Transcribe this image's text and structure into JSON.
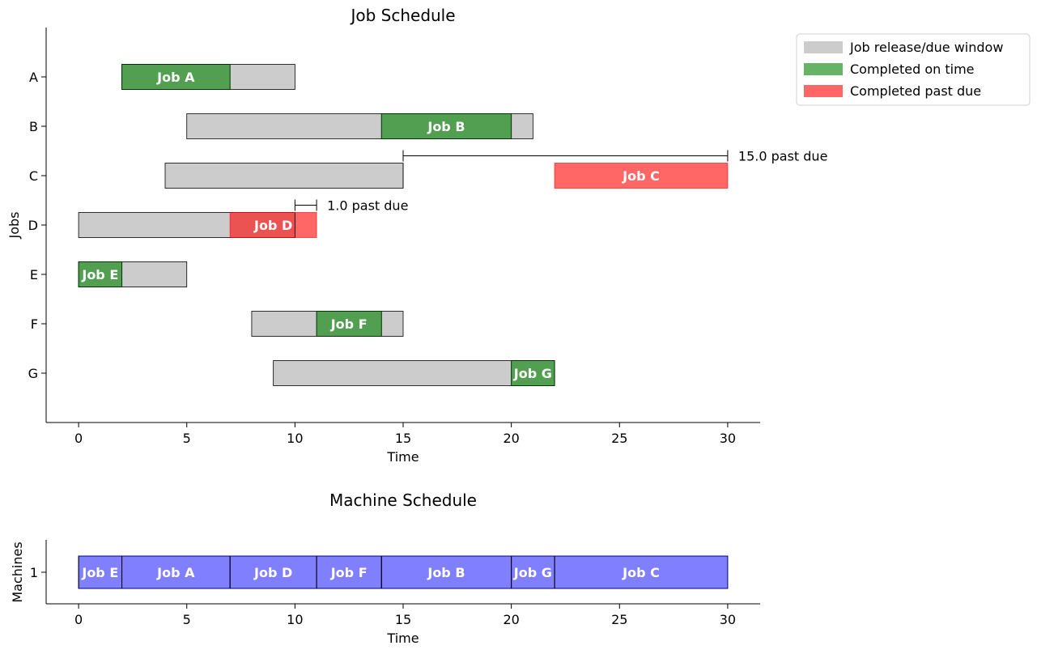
{
  "chart_data": [
    {
      "type": "gantt",
      "title": "Job Schedule",
      "xlabel": "Time",
      "ylabel": "Jobs",
      "xlim": [
        -1.5,
        31.5
      ],
      "xticks": [
        0,
        5,
        10,
        15,
        20,
        25,
        30
      ],
      "jobs": [
        {
          "name": "A",
          "release": 2,
          "due": 10,
          "start": 2,
          "end": 7,
          "label": "Job A",
          "status": "on_time"
        },
        {
          "name": "B",
          "release": 5,
          "due": 21,
          "start": 14,
          "end": 20,
          "label": "Job B",
          "status": "on_time"
        },
        {
          "name": "C",
          "release": 4,
          "due": 15,
          "start": 22,
          "end": 30,
          "label": "Job C",
          "status": "late",
          "annotation": "15.0 past due"
        },
        {
          "name": "D",
          "release": 0,
          "due": 10,
          "start": 7,
          "end": 11,
          "label": "Job D",
          "status": "late",
          "annotation": "1.0 past due"
        },
        {
          "name": "E",
          "release": 0,
          "due": 5,
          "start": 0,
          "end": 2,
          "label": "Job E",
          "status": "on_time"
        },
        {
          "name": "F",
          "release": 8,
          "due": 15,
          "start": 11,
          "end": 14,
          "label": "Job F",
          "status": "on_time"
        },
        {
          "name": "G",
          "release": 9,
          "due": 22,
          "start": 20,
          "end": 22,
          "label": "Job G",
          "status": "on_time"
        }
      ],
      "legend": {
        "position": "outside-top-right",
        "entries": [
          {
            "label": "Job release/due window",
            "color": "#cccccc"
          },
          {
            "label": "Completed on time",
            "color": "#66b266"
          },
          {
            "label": "Completed past due",
            "color": "#ff6666"
          }
        ]
      }
    },
    {
      "type": "gantt",
      "title": "Machine Schedule",
      "xlabel": "Time",
      "ylabel": "Machines",
      "xlim": [
        -1.5,
        31.5
      ],
      "xticks": [
        0,
        5,
        10,
        15,
        20,
        25,
        30
      ],
      "machines": [
        "1"
      ],
      "tasks": [
        {
          "machine": "1",
          "label": "Job E",
          "start": 0,
          "end": 2
        },
        {
          "machine": "1",
          "label": "Job A",
          "start": 2,
          "end": 7
        },
        {
          "machine": "1",
          "label": "Job D",
          "start": 7,
          "end": 11
        },
        {
          "machine": "1",
          "label": "Job F",
          "start": 11,
          "end": 14
        },
        {
          "machine": "1",
          "label": "Job B",
          "start": 14,
          "end": 20
        },
        {
          "machine": "1",
          "label": "Job G",
          "start": 20,
          "end": 22
        },
        {
          "machine": "1",
          "label": "Job C",
          "start": 22,
          "end": 30
        }
      ],
      "color": "#8080ff"
    }
  ]
}
